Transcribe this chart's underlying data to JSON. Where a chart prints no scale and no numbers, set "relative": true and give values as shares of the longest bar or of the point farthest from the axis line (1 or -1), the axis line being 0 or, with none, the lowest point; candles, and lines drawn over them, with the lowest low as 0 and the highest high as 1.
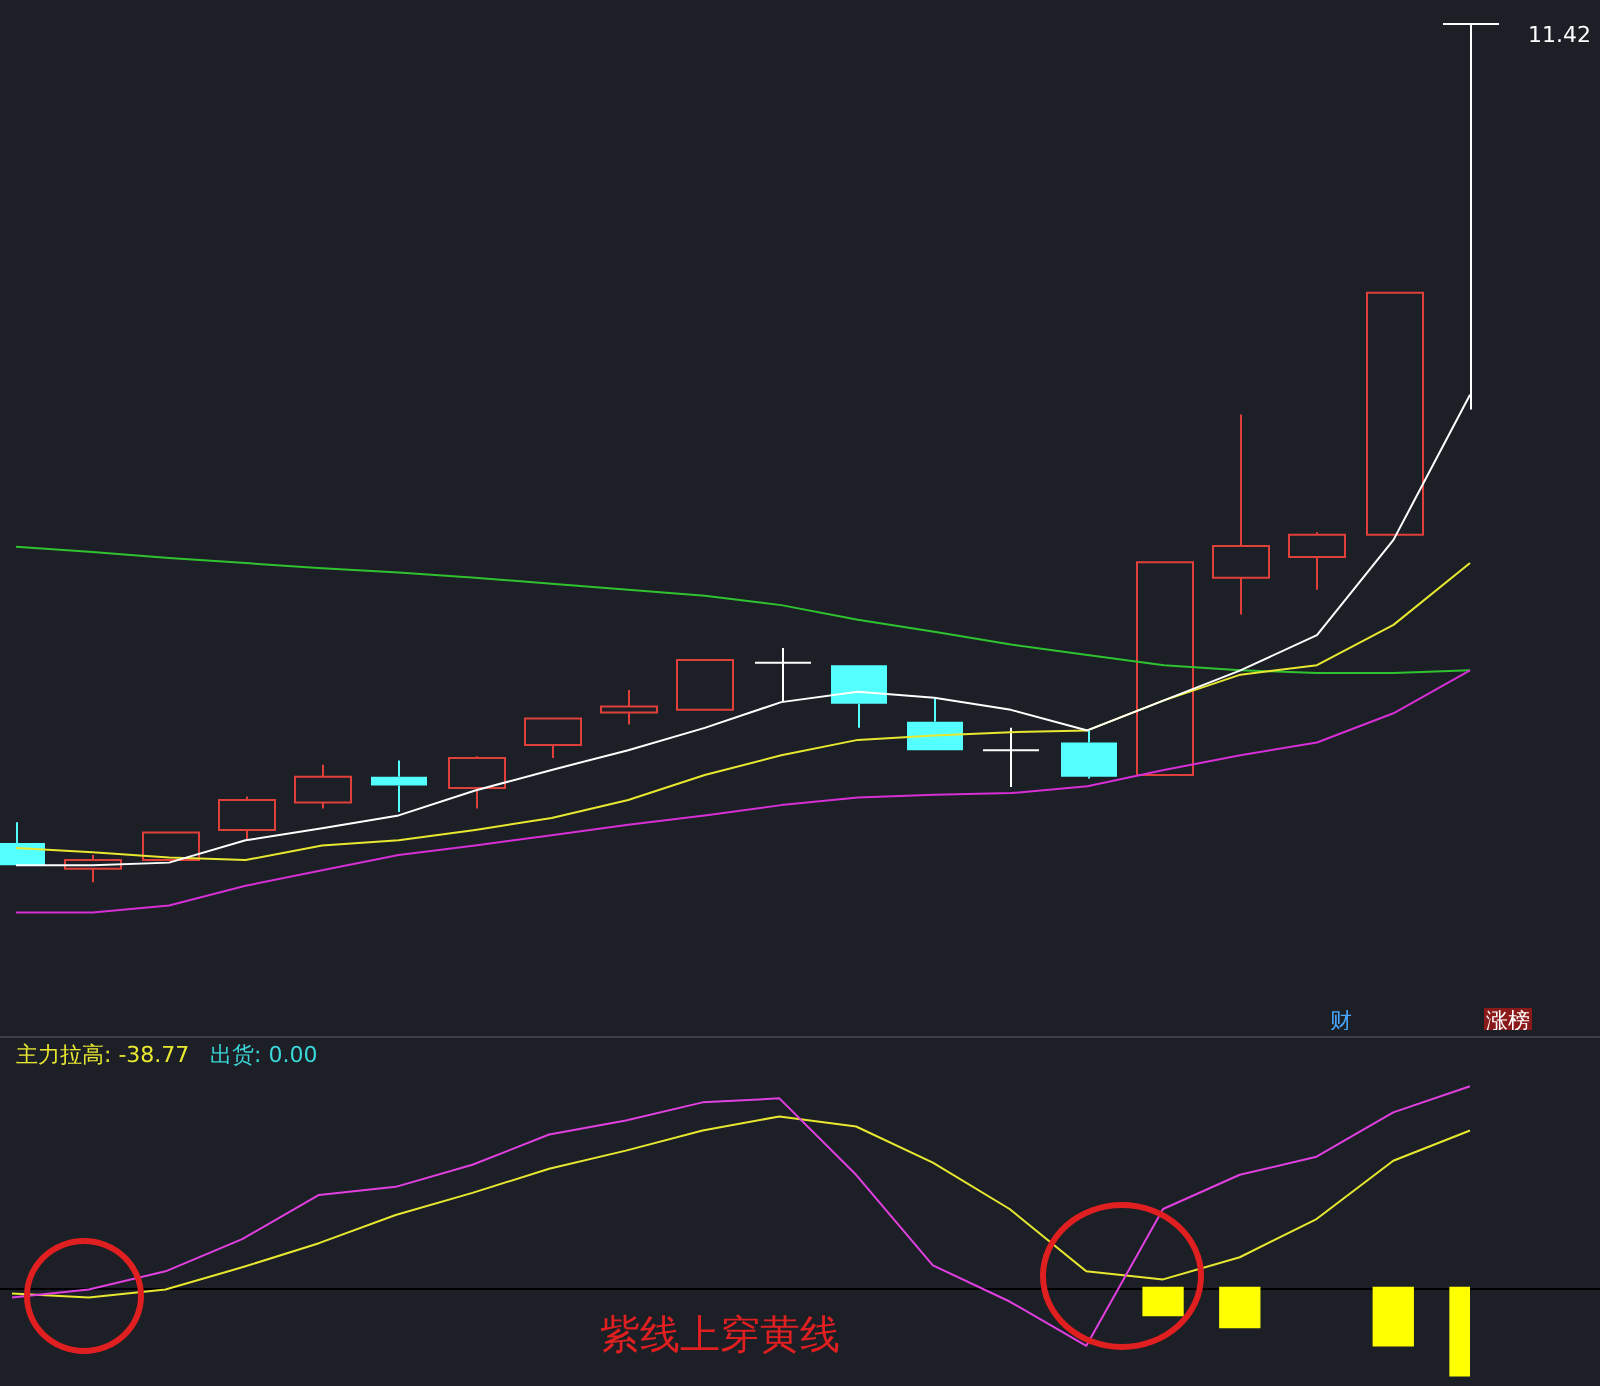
{
  "chart_data": [
    {
      "type": "candlestick",
      "categories": [
        null,
        null,
        null,
        null,
        null,
        null,
        null,
        null,
        null,
        null,
        null,
        null,
        null,
        null,
        null,
        null,
        null,
        null,
        null,
        null
      ],
      "relative": true,
      "ohlc": [
        [
          0.046,
          0.07,
          0.02,
          0.02
        ],
        [
          0.016,
          0.032,
          0,
          0.026
        ],
        [
          0.026,
          0.058,
          0.026,
          0.058
        ],
        [
          0.061,
          0.1,
          0.049,
          0.096
        ],
        [
          0.093,
          0.137,
          0.086,
          0.123
        ],
        [
          0.123,
          0.142,
          0.082,
          0.113
        ],
        [
          0.11,
          0.147,
          0.086,
          0.145
        ],
        [
          0.16,
          0.191,
          0.145,
          0.191
        ],
        [
          0.198,
          0.224,
          0.184,
          0.205
        ],
        [
          0.201,
          0.259,
          0.201,
          0.259
        ],
        [
          0.256,
          0.273,
          0.21,
          0.256
        ],
        [
          0.253,
          0.253,
          0.18,
          0.208
        ],
        [
          0.187,
          0.216,
          0.154,
          0.154
        ],
        [
          0.154,
          0.18,
          0.111,
          0.154
        ],
        [
          0.163,
          0.177,
          0.121,
          0.123
        ],
        [
          0.125,
          0.373,
          0.125,
          0.373
        ],
        [
          0.355,
          0.545,
          0.312,
          0.392
        ],
        [
          0.379,
          0.408,
          0.341,
          0.405
        ],
        [
          0.405,
          0.687,
          0.405,
          0.687
        ],
        [
          1,
          1,
          0.551,
          1
        ]
      ],
      "colors": [
        "#54ffff",
        "#e0403a",
        "#e0403a",
        "#e0403a",
        "#e0403a",
        "#54ffff",
        "#e0403a",
        "#e0403a",
        "#e0403a",
        "#e0403a",
        "#ffffff",
        "#54ffff",
        "#54ffff",
        "#ffffff",
        "#54ffff",
        "#e0403a",
        "#e0403a",
        "#e0403a",
        "#e0403a",
        "#ffffff"
      ],
      "series": [
        {
          "type": "line",
          "color": "#ffffff",
          "values": [
            0.02,
            0.02,
            0.023,
            0.049,
            0.063,
            0.078,
            0.107,
            0.131,
            0.154,
            0.18,
            0.21,
            0.222,
            0.215,
            0.201,
            0.177,
            0.212,
            0.247,
            0.288,
            0.399,
            0.568
          ]
        },
        {
          "type": "line",
          "color": "#e8e830",
          "values": [
            0.04,
            0.035,
            0.029,
            0.026,
            0.043,
            0.049,
            0.061,
            0.075,
            0.096,
            0.125,
            0.148,
            0.166,
            0.171,
            0.175,
            0.177,
            0.212,
            0.242,
            0.253,
            0.3,
            0.372
          ]
        },
        {
          "type": "line",
          "color": "#d62fd6",
          "values": [
            -0.035,
            -0.035,
            -0.027,
            -0.004,
            0.014,
            0.032,
            0.043,
            0.055,
            0.067,
            0.078,
            0.09,
            0.099,
            0.102,
            0.104,
            0.112,
            0.131,
            0.148,
            0.163,
            0.197,
            0.247
          ]
        },
        {
          "type": "line",
          "color": "#2fc42f",
          "values": [
            0.391,
            0.385,
            0.378,
            0.372,
            0.366,
            0.361,
            0.355,
            0.348,
            0.341,
            0.334,
            0.323,
            0.306,
            0.292,
            0.277,
            0.265,
            0.253,
            0.247,
            0.244,
            0.244,
            0.247
          ]
        }
      ],
      "annotations": [
        "11.42",
        "财",
        "涨榜"
      ]
    },
    {
      "type": "line",
      "categories": [
        null,
        null,
        null,
        null,
        null,
        null,
        null,
        null,
        null,
        null,
        null,
        null,
        null,
        null,
        null,
        null,
        null,
        null,
        null,
        null
      ],
      "relative": true,
      "series": [
        {
          "type": "line",
          "color": "#e040e0",
          "values": [
            -0.05,
            -0.01,
            0.08,
            0.24,
            0.46,
            0.5,
            0.61,
            0.76,
            0.83,
            0.92,
            0.94,
            0.56,
            0.11,
            -0.07,
            -0.29,
            0.39,
            0.56,
            0.65,
            0.87,
            1
          ]
        },
        {
          "type": "line",
          "color": "#e8e830",
          "values": [
            -0.03,
            -0.05,
            -0.01,
            0.1,
            0.22,
            0.36,
            0.47,
            0.59,
            0.68,
            0.78,
            0.85,
            0.8,
            0.62,
            0.39,
            0.08,
            0.04,
            0.15,
            0.34,
            0.63,
            0.78
          ]
        },
        {
          "type": "bar",
          "color": "#ffff00",
          "values": [
            null,
            null,
            null,
            null,
            null,
            null,
            null,
            null,
            null,
            null,
            null,
            null,
            null,
            null,
            null,
            -0.14,
            -0.2,
            null,
            -0.29,
            -0.44
          ]
        }
      ],
      "annotations": [
        "主力拉高: -38.77",
        "出货: 0.00",
        "紫线上穿黄线"
      ]
    }
  ]
}
